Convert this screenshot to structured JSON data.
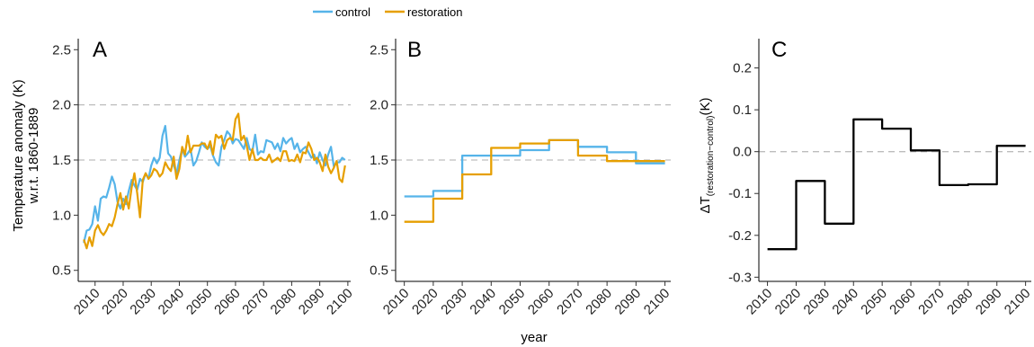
{
  "legend": {
    "items": [
      {
        "label": "control",
        "color": "#56B4E9"
      },
      {
        "label": "restoration",
        "color": "#E69F00"
      }
    ]
  },
  "figure": {
    "shared_xlabel": "year",
    "ylabel_line1": "Temperature anomaly (K)",
    "ylabel_line2": "w.r.t. 1860-1889",
    "ylabel_c_delta": "ΔT",
    "ylabel_c_sub": "(restoration−control)",
    "ylabel_c_unit": "(K)"
  },
  "chart_data": [
    {
      "panel": "A",
      "type": "line",
      "xlim": [
        2004,
        2101
      ],
      "ylim": [
        0.4,
        2.6
      ],
      "xticks": [
        2010,
        2020,
        2030,
        2040,
        2050,
        2060,
        2070,
        2080,
        2090,
        2100
      ],
      "yticks": [
        0.5,
        1.0,
        1.5,
        2.0,
        2.5
      ],
      "ytick_labels": [
        "0.5",
        "1.0",
        "1.5",
        "2.0",
        "2.5"
      ],
      "reference_lines": [
        1.5,
        2.0
      ],
      "series": [
        {
          "name": "control",
          "color": "#56B4E9",
          "x": [
            2006,
            2007,
            2008,
            2009,
            2010,
            2011,
            2012,
            2013,
            2014,
            2015,
            2016,
            2017,
            2018,
            2019,
            2020,
            2021,
            2022,
            2023,
            2024,
            2025,
            2026,
            2027,
            2028,
            2029,
            2030,
            2031,
            2032,
            2033,
            2034,
            2035,
            2036,
            2037,
            2038,
            2039,
            2040,
            2041,
            2042,
            2043,
            2044,
            2045,
            2046,
            2047,
            2048,
            2049,
            2050,
            2051,
            2052,
            2053,
            2054,
            2055,
            2056,
            2057,
            2058,
            2059,
            2060,
            2061,
            2062,
            2063,
            2064,
            2065,
            2066,
            2067,
            2068,
            2069,
            2070,
            2071,
            2072,
            2073,
            2074,
            2075,
            2076,
            2077,
            2078,
            2079,
            2080,
            2081,
            2082,
            2083,
            2084,
            2085,
            2086,
            2087,
            2088,
            2089,
            2090,
            2091,
            2092,
            2093,
            2094,
            2095,
            2096,
            2097,
            2098,
            2099
          ],
          "y": [
            0.75,
            0.86,
            0.87,
            0.92,
            1.08,
            0.95,
            1.15,
            1.17,
            1.16,
            1.25,
            1.35,
            1.28,
            1.12,
            1.06,
            1.15,
            1.1,
            1.22,
            1.32,
            1.27,
            1.23,
            1.33,
            1.3,
            1.38,
            1.33,
            1.45,
            1.52,
            1.47,
            1.52,
            1.72,
            1.81,
            1.56,
            1.53,
            1.45,
            1.38,
            1.5,
            1.6,
            1.53,
            1.56,
            1.6,
            1.45,
            1.49,
            1.57,
            1.66,
            1.62,
            1.6,
            1.63,
            1.54,
            1.48,
            1.45,
            1.62,
            1.68,
            1.76,
            1.73,
            1.65,
            1.69,
            1.68,
            1.64,
            1.6,
            1.7,
            1.6,
            1.58,
            1.73,
            1.55,
            1.58,
            1.57,
            1.68,
            1.67,
            1.66,
            1.6,
            1.65,
            1.58,
            1.7,
            1.65,
            1.68,
            1.7,
            1.6,
            1.65,
            1.57,
            1.6,
            1.62,
            1.57,
            1.52,
            1.55,
            1.47,
            1.57,
            1.5,
            1.45,
            1.55,
            1.62,
            1.44,
            1.48,
            1.48,
            1.52,
            1.5
          ]
        },
        {
          "name": "restoration",
          "color": "#E69F00",
          "x": [
            2006,
            2007,
            2008,
            2009,
            2010,
            2011,
            2012,
            2013,
            2014,
            2015,
            2016,
            2017,
            2018,
            2019,
            2020,
            2021,
            2022,
            2023,
            2024,
            2025,
            2026,
            2027,
            2028,
            2029,
            2030,
            2031,
            2032,
            2033,
            2034,
            2035,
            2036,
            2037,
            2038,
            2039,
            2040,
            2041,
            2042,
            2043,
            2044,
            2045,
            2046,
            2047,
            2048,
            2049,
            2050,
            2051,
            2052,
            2053,
            2054,
            2055,
            2056,
            2057,
            2058,
            2059,
            2060,
            2061,
            2062,
            2063,
            2064,
            2065,
            2066,
            2067,
            2068,
            2069,
            2070,
            2071,
            2072,
            2073,
            2074,
            2075,
            2076,
            2077,
            2078,
            2079,
            2080,
            2081,
            2082,
            2083,
            2084,
            2085,
            2086,
            2087,
            2088,
            2089,
            2090,
            2091,
            2092,
            2093,
            2094,
            2095,
            2096,
            2097,
            2098,
            2099
          ],
          "y": [
            0.78,
            0.7,
            0.8,
            0.72,
            0.86,
            0.91,
            0.85,
            0.82,
            0.86,
            0.92,
            0.9,
            0.98,
            1.1,
            1.2,
            1.05,
            1.17,
            1.06,
            1.25,
            1.38,
            1.2,
            0.98,
            1.32,
            1.38,
            1.33,
            1.36,
            1.42,
            1.4,
            1.35,
            1.38,
            1.48,
            1.43,
            1.4,
            1.53,
            1.33,
            1.42,
            1.62,
            1.55,
            1.72,
            1.57,
            1.63,
            1.63,
            1.63,
            1.65,
            1.65,
            1.6,
            1.67,
            1.55,
            1.73,
            1.7,
            1.72,
            1.6,
            1.68,
            1.7,
            1.68,
            1.87,
            1.92,
            1.68,
            1.72,
            1.63,
            1.5,
            1.6,
            1.5,
            1.5,
            1.52,
            1.5,
            1.5,
            1.55,
            1.48,
            1.5,
            1.52,
            1.49,
            1.58,
            1.58,
            1.49,
            1.5,
            1.49,
            1.55,
            1.48,
            1.57,
            1.56,
            1.66,
            1.6,
            1.5,
            1.52,
            1.48,
            1.4,
            1.55,
            1.44,
            1.38,
            1.43,
            1.49,
            1.33,
            1.3,
            1.45
          ]
        }
      ]
    },
    {
      "panel": "B",
      "type": "line",
      "step": true,
      "xlim": [
        2007,
        2102
      ],
      "ylim": [
        0.4,
        2.6
      ],
      "xticks": [
        2010,
        2020,
        2030,
        2040,
        2050,
        2060,
        2070,
        2080,
        2090,
        2100
      ],
      "yticks": [
        0.5,
        1.0,
        1.5,
        2.0,
        2.5
      ],
      "ytick_labels": [
        "0.5",
        "1.0",
        "1.5",
        "2.0",
        "2.5"
      ],
      "reference_lines": [
        1.5,
        2.0
      ],
      "decade_starts": [
        2010,
        2020,
        2030,
        2040,
        2050,
        2060,
        2070,
        2080,
        2090
      ],
      "x_end": 2100,
      "series": [
        {
          "name": "control",
          "color": "#56B4E9",
          "values": [
            1.17,
            1.22,
            1.54,
            1.54,
            1.59,
            1.68,
            1.62,
            1.57,
            1.47
          ]
        },
        {
          "name": "restoration",
          "color": "#E69F00",
          "values": [
            0.94,
            1.15,
            1.37,
            1.61,
            1.65,
            1.68,
            1.54,
            1.49,
            1.49
          ]
        }
      ]
    },
    {
      "panel": "C",
      "type": "line",
      "step": true,
      "xlim": [
        2007,
        2102
      ],
      "ylim": [
        -0.31,
        0.27
      ],
      "xticks": [
        2010,
        2020,
        2030,
        2040,
        2050,
        2060,
        2070,
        2080,
        2090,
        2100
      ],
      "yticks": [
        -0.3,
        -0.2,
        -0.1,
        0.0,
        0.1,
        0.2
      ],
      "ytick_labels": [
        "-0.3",
        "-0.2",
        "-0.1",
        "0.0",
        "0.1",
        "0.2"
      ],
      "reference_lines": [
        0.0
      ],
      "decade_starts": [
        2010,
        2020,
        2030,
        2040,
        2050,
        2060,
        2070,
        2080,
        2090
      ],
      "x_end": 2100,
      "series": [
        {
          "color": "#000000",
          "values": [
            -0.233,
            -0.07,
            -0.172,
            0.077,
            0.055,
            0.003,
            -0.08,
            -0.078,
            0.014
          ]
        }
      ]
    }
  ]
}
